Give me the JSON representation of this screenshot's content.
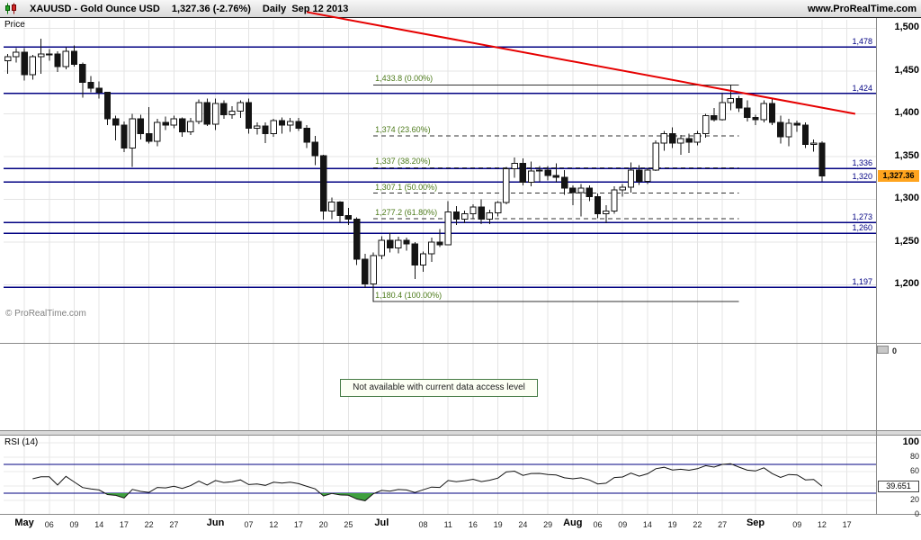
{
  "header": {
    "symbol": "XAUUSD - Gold Ounce USD",
    "last_price_change": "1,327.36 (-2.76%)",
    "timeframe": "Daily",
    "date": "Sep 12 2013",
    "site": "www.ProRealTime.com"
  },
  "main_panel": {
    "axis_title": "Price",
    "watermark": "© ProRealTime.com",
    "last_price_badge": "1,327.36"
  },
  "volume_panel": {
    "message": "Not available with current data access level",
    "zero_label": "0"
  },
  "rsi_panel": {
    "label": "RSI (14)",
    "value_badge": "39.651"
  },
  "chart_data": {
    "type": "candlestick",
    "symbol": "XAUUSD",
    "name": "Gold Ounce USD",
    "timeframe": "Daily",
    "last_date": "Sep 12 2013",
    "last_close": 1327.36,
    "change_pct": -2.76,
    "price_axis": {
      "range": [
        1132,
        1510
      ],
      "ticks": [
        {
          "v": 1500,
          "label": "1,500"
        },
        {
          "v": 1450,
          "label": "1,450"
        },
        {
          "v": 1400,
          "label": "1,400"
        },
        {
          "v": 1350,
          "label": "1,350"
        },
        {
          "v": 1300,
          "label": "1,300"
        },
        {
          "v": 1250,
          "label": "1,250"
        },
        {
          "v": 1200,
          "label": "1,200"
        }
      ]
    },
    "horizontal_levels": [
      {
        "price": 1478,
        "label": "1,478"
      },
      {
        "price": 1424,
        "label": "1,424"
      },
      {
        "price": 1336,
        "label": "1,336"
      },
      {
        "price": 1320,
        "label": "1,320"
      },
      {
        "price": 1273,
        "label": "1,273"
      },
      {
        "price": 1260,
        "label": "1,260"
      },
      {
        "price": 1197,
        "label": "1,197"
      }
    ],
    "fibonacci": {
      "from_index": 44,
      "to_index": 88,
      "levels": [
        {
          "price": 1433.8,
          "label": "1,433.8 (0.00%)",
          "style": "solid"
        },
        {
          "price": 1374.0,
          "label": "1,374 (23.60%)",
          "style": "dashed"
        },
        {
          "price": 1337.0,
          "label": "1,337 (38.20%)",
          "style": "dashed"
        },
        {
          "price": 1307.1,
          "label": "1,307.1 (50.00%)",
          "style": "dashed"
        },
        {
          "price": 1277.2,
          "label": "1,277.2 (61.80%)",
          "style": "dashed"
        },
        {
          "price": 1180.4,
          "label": "1,180.4 (100.00%)",
          "style": "solid"
        }
      ]
    },
    "trendline": {
      "color": "#e60000",
      "from": {
        "index": 36,
        "price": 1519
      },
      "to": {
        "index": 102,
        "price": 1400
      }
    },
    "x_ticks": [
      {
        "i": 2,
        "label": "May",
        "month": true
      },
      {
        "i": 5,
        "label": "06"
      },
      {
        "i": 8,
        "label": "09"
      },
      {
        "i": 11,
        "label": "14"
      },
      {
        "i": 14,
        "label": "17"
      },
      {
        "i": 17,
        "label": "22"
      },
      {
        "i": 20,
        "label": "27"
      },
      {
        "i": 25,
        "label": "Jun",
        "month": true
      },
      {
        "i": 29,
        "label": "07"
      },
      {
        "i": 32,
        "label": "12"
      },
      {
        "i": 35,
        "label": "17"
      },
      {
        "i": 38,
        "label": "20"
      },
      {
        "i": 41,
        "label": "25"
      },
      {
        "i": 45,
        "label": "Jul",
        "month": true
      },
      {
        "i": 50,
        "label": "08"
      },
      {
        "i": 53,
        "label": "11"
      },
      {
        "i": 56,
        "label": "16"
      },
      {
        "i": 59,
        "label": "19"
      },
      {
        "i": 62,
        "label": "24"
      },
      {
        "i": 65,
        "label": "29"
      },
      {
        "i": 68,
        "label": "Aug",
        "month": true
      },
      {
        "i": 71,
        "label": "06"
      },
      {
        "i": 74,
        "label": "09"
      },
      {
        "i": 77,
        "label": "14"
      },
      {
        "i": 80,
        "label": "19"
      },
      {
        "i": 83,
        "label": "22"
      },
      {
        "i": 86,
        "label": "27"
      },
      {
        "i": 90,
        "label": "Sep",
        "month": true
      },
      {
        "i": 95,
        "label": "09"
      },
      {
        "i": 98,
        "label": "12"
      },
      {
        "i": 101,
        "label": "17"
      }
    ],
    "candles": [
      [
        "2013-04-29",
        1462,
        1470,
        1447,
        1467
      ],
      [
        "2013-04-30",
        1467,
        1477,
        1460,
        1472
      ],
      [
        "2013-05-01",
        1472,
        1477,
        1439,
        1446
      ],
      [
        "2013-05-02",
        1446,
        1469,
        1440,
        1467
      ],
      [
        "2013-05-03",
        1467,
        1488,
        1447,
        1470
      ],
      [
        "2013-05-06",
        1470,
        1476,
        1462,
        1470
      ],
      [
        "2013-05-07",
        1470,
        1473,
        1449,
        1455
      ],
      [
        "2013-05-08",
        1455,
        1478,
        1452,
        1473
      ],
      [
        "2013-05-09",
        1473,
        1480,
        1455,
        1458
      ],
      [
        "2013-05-10",
        1458,
        1460,
        1419,
        1437
      ],
      [
        "2013-05-13",
        1437,
        1444,
        1425,
        1430
      ],
      [
        "2013-05-14",
        1430,
        1438,
        1418,
        1425
      ],
      [
        "2013-05-15",
        1425,
        1426,
        1387,
        1394
      ],
      [
        "2013-05-16",
        1394,
        1398,
        1369,
        1387
      ],
      [
        "2013-05-17",
        1387,
        1391,
        1355,
        1360
      ],
      [
        "2013-05-20",
        1360,
        1400,
        1338,
        1394
      ],
      [
        "2013-05-21",
        1394,
        1399,
        1370,
        1377
      ],
      [
        "2013-05-22",
        1377,
        1408,
        1365,
        1368
      ],
      [
        "2013-05-23",
        1368,
        1394,
        1362,
        1390
      ],
      [
        "2013-05-24",
        1390,
        1397,
        1381,
        1387
      ],
      [
        "2013-05-27",
        1387,
        1398,
        1383,
        1394
      ],
      [
        "2013-05-28",
        1394,
        1396,
        1373,
        1379
      ],
      [
        "2013-05-29",
        1379,
        1395,
        1375,
        1391
      ],
      [
        "2013-05-30",
        1391,
        1417,
        1388,
        1413
      ],
      [
        "2013-05-31",
        1413,
        1418,
        1386,
        1388
      ],
      [
        "2013-06-03",
        1388,
        1418,
        1381,
        1412
      ],
      [
        "2013-06-04",
        1412,
        1416,
        1394,
        1399
      ],
      [
        "2013-06-05",
        1399,
        1409,
        1394,
        1403
      ],
      [
        "2013-06-06",
        1403,
        1416,
        1395,
        1413
      ],
      [
        "2013-06-07",
        1413,
        1418,
        1377,
        1383
      ],
      [
        "2013-06-10",
        1383,
        1390,
        1376,
        1386
      ],
      [
        "2013-06-11",
        1386,
        1390,
        1366,
        1377
      ],
      [
        "2013-06-12",
        1377,
        1394,
        1373,
        1392
      ],
      [
        "2013-06-13",
        1392,
        1396,
        1377,
        1387
      ],
      [
        "2013-06-14",
        1387,
        1395,
        1379,
        1391
      ],
      [
        "2013-06-17",
        1391,
        1395,
        1380,
        1383
      ],
      [
        "2013-06-18",
        1383,
        1387,
        1360,
        1367
      ],
      [
        "2013-06-19",
        1367,
        1374,
        1340,
        1351
      ],
      [
        "2013-06-20",
        1351,
        1352,
        1276,
        1286
      ],
      [
        "2013-06-21",
        1286,
        1302,
        1277,
        1297
      ],
      [
        "2013-06-24",
        1297,
        1298,
        1273,
        1281
      ],
      [
        "2013-06-25",
        1281,
        1290,
        1270,
        1277
      ],
      [
        "2013-06-26",
        1277,
        1279,
        1223,
        1230
      ],
      [
        "2013-06-27",
        1230,
        1236,
        1196,
        1201
      ],
      [
        "2013-06-28",
        1201,
        1238,
        1180,
        1234
      ],
      [
        "2013-07-01",
        1234,
        1257,
        1230,
        1252
      ],
      [
        "2013-07-02",
        1252,
        1261,
        1238,
        1243
      ],
      [
        "2013-07-03",
        1243,
        1256,
        1237,
        1252
      ],
      [
        "2013-07-04",
        1252,
        1255,
        1240,
        1248
      ],
      [
        "2013-07-05",
        1248,
        1250,
        1207,
        1223
      ],
      [
        "2013-07-08",
        1223,
        1239,
        1215,
        1236
      ],
      [
        "2013-07-09",
        1236,
        1255,
        1227,
        1250
      ],
      [
        "2013-07-10",
        1250,
        1265,
        1244,
        1247
      ],
      [
        "2013-07-11",
        1247,
        1298,
        1246,
        1285
      ],
      [
        "2013-07-12",
        1285,
        1292,
        1270,
        1277
      ],
      [
        "2013-07-15",
        1277,
        1287,
        1272,
        1283
      ],
      [
        "2013-07-16",
        1283,
        1294,
        1277,
        1291
      ],
      [
        "2013-07-17",
        1291,
        1300,
        1271,
        1277
      ],
      [
        "2013-07-18",
        1277,
        1288,
        1271,
        1284
      ],
      [
        "2013-07-19",
        1284,
        1298,
        1280,
        1296
      ],
      [
        "2013-07-22",
        1296,
        1338,
        1294,
        1336
      ],
      [
        "2013-07-23",
        1336,
        1349,
        1325,
        1342
      ],
      [
        "2013-07-24",
        1342,
        1348,
        1316,
        1320
      ],
      [
        "2013-07-25",
        1320,
        1344,
        1315,
        1333
      ],
      [
        "2013-07-26",
        1333,
        1339,
        1321,
        1334
      ],
      [
        "2013-07-29",
        1334,
        1339,
        1322,
        1328
      ],
      [
        "2013-07-30",
        1328,
        1342,
        1320,
        1326
      ],
      [
        "2013-07-31",
        1326,
        1334,
        1305,
        1313
      ],
      [
        "2013-08-01",
        1313,
        1316,
        1293,
        1308
      ],
      [
        "2013-08-02",
        1308,
        1318,
        1280,
        1313
      ],
      [
        "2013-08-05",
        1313,
        1316,
        1298,
        1303
      ],
      [
        "2013-08-06",
        1303,
        1307,
        1278,
        1283
      ],
      [
        "2013-08-07",
        1283,
        1293,
        1272,
        1286
      ],
      [
        "2013-08-08",
        1286,
        1315,
        1283,
        1311
      ],
      [
        "2013-08-09",
        1311,
        1318,
        1303,
        1314
      ],
      [
        "2013-08-12",
        1314,
        1343,
        1308,
        1334
      ],
      [
        "2013-08-13",
        1334,
        1340,
        1317,
        1321
      ],
      [
        "2013-08-14",
        1321,
        1337,
        1318,
        1334
      ],
      [
        "2013-08-15",
        1334,
        1369,
        1333,
        1366
      ],
      [
        "2013-08-16",
        1366,
        1380,
        1357,
        1377
      ],
      [
        "2013-08-19",
        1377,
        1384,
        1360,
        1366
      ],
      [
        "2013-08-20",
        1366,
        1375,
        1352,
        1371
      ],
      [
        "2013-08-21",
        1371,
        1377,
        1354,
        1367
      ],
      [
        "2013-08-22",
        1367,
        1380,
        1363,
        1377
      ],
      [
        "2013-08-23",
        1377,
        1400,
        1372,
        1398
      ],
      [
        "2013-08-26",
        1398,
        1407,
        1391,
        1393
      ],
      [
        "2013-08-27",
        1393,
        1424,
        1392,
        1413
      ],
      [
        "2013-08-28",
        1413,
        1434,
        1404,
        1418
      ],
      [
        "2013-08-29",
        1418,
        1421,
        1402,
        1407
      ],
      [
        "2013-08-30",
        1407,
        1416,
        1391,
        1396
      ],
      [
        "2013-09-02",
        1396,
        1399,
        1387,
        1393
      ],
      [
        "2013-09-03",
        1393,
        1416,
        1390,
        1412
      ],
      [
        "2013-09-04",
        1412,
        1418,
        1387,
        1390
      ],
      [
        "2013-09-05",
        1390,
        1398,
        1365,
        1373
      ],
      [
        "2013-09-06",
        1373,
        1394,
        1362,
        1389
      ],
      [
        "2013-09-09",
        1389,
        1392,
        1379,
        1387
      ],
      [
        "2013-09-10",
        1387,
        1390,
        1360,
        1364
      ],
      [
        "2013-09-11",
        1364,
        1370,
        1356,
        1366
      ],
      [
        "2013-09-12",
        1366,
        1368,
        1321,
        1327.36
      ]
    ],
    "rsi": {
      "period": 14,
      "last": 39.651,
      "axis_range": [
        0,
        110
      ],
      "ticks": [
        {
          "v": 100,
          "label": "100",
          "big": true
        },
        {
          "v": 80,
          "label": "80"
        },
        {
          "v": 60,
          "label": "60"
        },
        {
          "v": 40,
          "label": "40"
        },
        {
          "v": 20,
          "label": "20"
        },
        {
          "v": 0,
          "label": "0"
        }
      ],
      "levels": [
        70,
        30
      ],
      "oversold_fill": "#3fa03f"
    },
    "volume": {
      "available": false,
      "zero_label": "0"
    }
  }
}
